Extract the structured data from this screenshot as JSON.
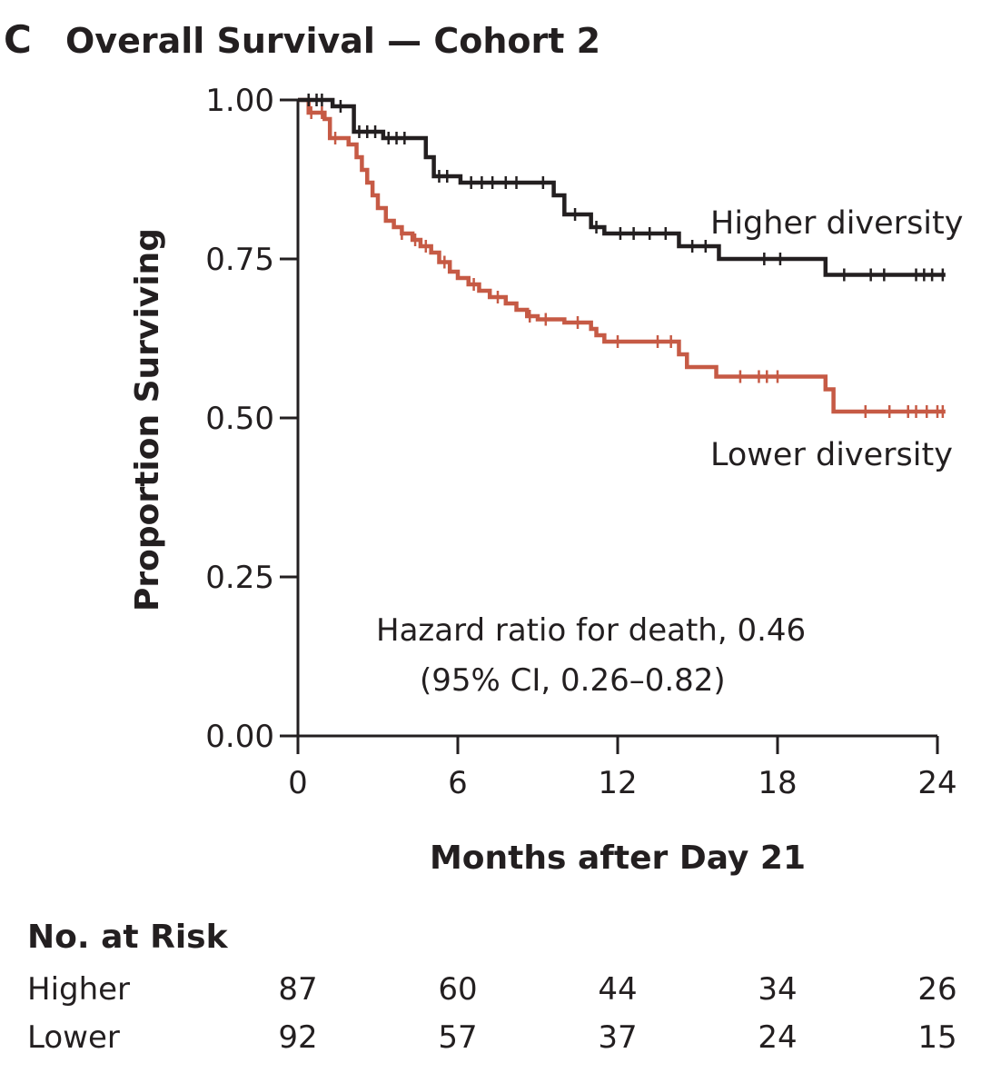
{
  "panel_letter": "C",
  "chart_data": {
    "type": "line",
    "subtype": "kaplan-meier",
    "title": "Overall Survival — Cohort 2",
    "xlabel": "Months after Day 21",
    "ylabel": "Proportion Surviving",
    "xlim": [
      0,
      24
    ],
    "ylim": [
      0,
      1
    ],
    "x_ticks": [
      0,
      6,
      12,
      18,
      24
    ],
    "x_tick_labels": [
      "0",
      "6",
      "12",
      "18",
      "24"
    ],
    "y_ticks": [
      0,
      0.25,
      0.5,
      0.75,
      1.0
    ],
    "y_tick_labels": [
      "0.00",
      "0.25",
      "0.50",
      "0.75",
      "1.00"
    ],
    "grid": false,
    "series": [
      {
        "name": "Higher diversity",
        "color": "#231f20",
        "steps": [
          [
            0,
            1.0
          ],
          [
            1.3,
            0.99
          ],
          [
            2.1,
            0.95
          ],
          [
            3.2,
            0.94
          ],
          [
            4.8,
            0.91
          ],
          [
            5.1,
            0.88
          ],
          [
            6.1,
            0.87
          ],
          [
            9.6,
            0.85
          ],
          [
            10.0,
            0.82
          ],
          [
            11.0,
            0.8
          ],
          [
            11.5,
            0.79
          ],
          [
            14.3,
            0.77
          ],
          [
            15.8,
            0.75
          ],
          [
            19.8,
            0.725
          ],
          [
            24.3,
            0.725
          ]
        ],
        "censors": [
          0.4,
          0.7,
          0.9,
          1.6,
          2.3,
          2.6,
          2.9,
          3.4,
          3.7,
          4.0,
          5.3,
          5.6,
          6.5,
          6.9,
          7.3,
          7.8,
          8.2,
          9.2,
          10.4,
          11.2,
          12.1,
          12.6,
          13.2,
          13.8,
          14.8,
          15.3,
          17.5,
          18.1,
          20.5,
          21.5,
          22.0,
          23.2,
          23.5,
          23.8,
          24.2
        ]
      },
      {
        "name": "Lower diversity",
        "color": "#c65a45",
        "steps": [
          [
            0,
            1.0
          ],
          [
            0.4,
            0.98
          ],
          [
            1.0,
            0.97
          ],
          [
            1.2,
            0.94
          ],
          [
            1.9,
            0.93
          ],
          [
            2.2,
            0.91
          ],
          [
            2.4,
            0.89
          ],
          [
            2.6,
            0.87
          ],
          [
            2.8,
            0.85
          ],
          [
            3.0,
            0.83
          ],
          [
            3.3,
            0.81
          ],
          [
            3.6,
            0.8
          ],
          [
            3.9,
            0.79
          ],
          [
            4.3,
            0.78
          ],
          [
            4.6,
            0.77
          ],
          [
            5.0,
            0.76
          ],
          [
            5.3,
            0.745
          ],
          [
            5.7,
            0.73
          ],
          [
            6.0,
            0.72
          ],
          [
            6.4,
            0.71
          ],
          [
            6.8,
            0.7
          ],
          [
            7.2,
            0.69
          ],
          [
            7.8,
            0.68
          ],
          [
            8.2,
            0.67
          ],
          [
            8.6,
            0.66
          ],
          [
            9.0,
            0.655
          ],
          [
            10.0,
            0.65
          ],
          [
            11.0,
            0.64
          ],
          [
            11.2,
            0.63
          ],
          [
            11.5,
            0.62
          ],
          [
            14.3,
            0.6
          ],
          [
            14.6,
            0.58
          ],
          [
            15.7,
            0.565
          ],
          [
            19.8,
            0.545
          ],
          [
            20.1,
            0.51
          ],
          [
            24.3,
            0.51
          ]
        ],
        "censors": [
          0.5,
          0.9,
          1.4,
          3.9,
          4.4,
          4.8,
          5.5,
          6.6,
          7.5,
          8.7,
          9.3,
          10.5,
          12.0,
          13.5,
          14.0,
          16.6,
          17.3,
          17.6,
          18.0,
          21.3,
          22.2,
          22.9,
          23.2,
          23.6,
          24.0,
          24.2
        ]
      }
    ],
    "annotation": [
      "Hazard ratio for death, 0.46",
      "(95% CI, 0.26–0.82)"
    ]
  },
  "risk_table": {
    "title": "No. at Risk",
    "rows": [
      {
        "label": "Higher",
        "values": [
          "87",
          "60",
          "44",
          "34",
          "26"
        ]
      },
      {
        "label": "Lower",
        "values": [
          "92",
          "57",
          "37",
          "24",
          "15"
        ]
      }
    ]
  }
}
